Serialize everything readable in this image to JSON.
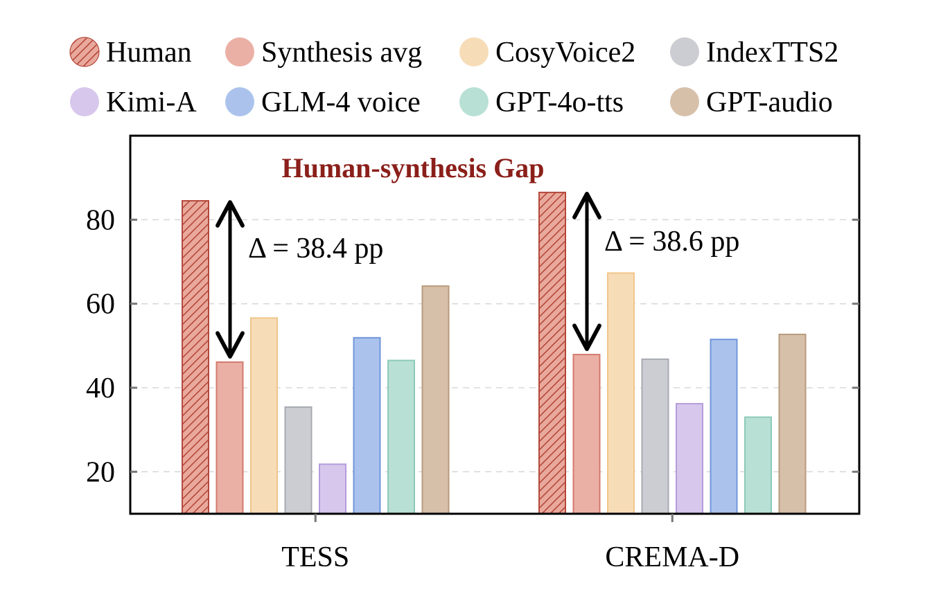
{
  "chart_data": {
    "type": "bar",
    "title": "Human-synthesis Gap",
    "xlabel": "",
    "ylabel": "",
    "categories": [
      "TESS",
      "CREMA-D"
    ],
    "ylim": [
      10,
      100
    ],
    "yticks": [
      20,
      40,
      60,
      80
    ],
    "grid": "horizontal-dashed",
    "legend_position": "top",
    "series": [
      {
        "name": "Human",
        "values": [
          84.5,
          86.5
        ],
        "color": "#e8a99c",
        "edge": "#b5483b",
        "hatch": true
      },
      {
        "name": "Synthesis avg",
        "values": [
          46.1,
          47.9
        ],
        "color": "#ebb0a5",
        "edge": "#d47a6e"
      },
      {
        "name": "CosyVoice2",
        "values": [
          56.6,
          67.3
        ],
        "color": "#f7dcb8",
        "edge": "#f0c58a"
      },
      {
        "name": "IndexTTS2",
        "values": [
          35.4,
          46.8
        ],
        "color": "#cccdd3",
        "edge": "#a8aab2"
      },
      {
        "name": "Kimi-A",
        "values": [
          21.8,
          36.2
        ],
        "color": "#d7c7ec",
        "edge": "#b49cdb"
      },
      {
        "name": "GLM-4 voice",
        "values": [
          51.9,
          51.5
        ],
        "color": "#abc3ec",
        "edge": "#6f95db"
      },
      {
        "name": "GPT-4o-tts",
        "values": [
          46.5,
          33.0
        ],
        "color": "#b9e0d5",
        "edge": "#8ccab7"
      },
      {
        "name": "GPT-audio",
        "values": [
          64.2,
          52.7
        ],
        "color": "#d7c0aa",
        "edge": "#b89a7c"
      }
    ],
    "annotations": [
      {
        "category": "TESS",
        "text": "Δ = 38.4 pp",
        "from": 84.5,
        "to": 46.1
      },
      {
        "category": "CREMA-D",
        "text": "Δ = 38.6 pp",
        "from": 86.5,
        "to": 47.9
      }
    ],
    "title_color": "#8b1f1a"
  }
}
